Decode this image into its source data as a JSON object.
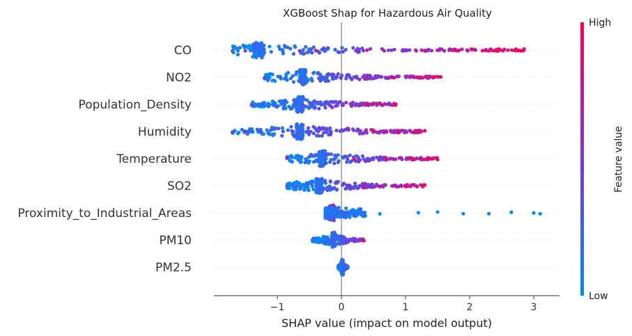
{
  "chart_data": {
    "type": "scatter",
    "title": "XGBoost Shap for Hazardous Air Quality",
    "xlabel": "SHAP value (impact on model output)",
    "xlim": [
      -1.95,
      3.35
    ],
    "x_ticks": [
      -1,
      0,
      1,
      2,
      3
    ],
    "x_tick_labels": [
      "−1",
      "0",
      "1",
      "2",
      "3"
    ],
    "colorbar": {
      "label": "Feature value",
      "high_label": "High",
      "low_label": "Low",
      "high_color": "#ff0052",
      "low_color": "#008bfb"
    },
    "features": [
      {
        "name": "CO",
        "min": -1.7,
        "max": 2.85,
        "dense": [
          -1.4,
          -1.2
        ],
        "low_side": "left",
        "mix": 0.9,
        "sparse": [
          [
            -1.7,
            0.3
          ],
          [
            -1.5,
            0.4
          ],
          [
            -0.65,
            0.6
          ],
          [
            -0.4,
            0.7
          ],
          [
            0.4,
            0.8
          ],
          [
            1.3,
            0.9
          ],
          [
            1.8,
            0.95
          ],
          [
            2.2,
            1
          ],
          [
            2.45,
            1
          ],
          [
            2.85,
            1
          ]
        ]
      },
      {
        "name": "NO2",
        "min": -1.2,
        "max": 1.55,
        "dense": [
          -0.65,
          -0.55
        ],
        "low_side": "left",
        "mix": 0.8,
        "sparse": [
          [
            -1.2,
            0.4
          ],
          [
            -0.95,
            0.3
          ],
          [
            0.4,
            0.8
          ],
          [
            0.8,
            0.9
          ],
          [
            1.2,
            0.95
          ],
          [
            1.45,
            1
          ],
          [
            1.55,
            1
          ]
        ]
      },
      {
        "name": "Population_Density",
        "min": -1.4,
        "max": 0.85,
        "dense": [
          -0.7,
          -0.6
        ],
        "low_side": "left",
        "mix": 0.7,
        "sparse": [
          [
            -1.4,
            0.5
          ],
          [
            -1.25,
            0.4
          ],
          [
            0.4,
            0.9
          ],
          [
            0.6,
            0.95
          ],
          [
            0.85,
            1
          ]
        ]
      },
      {
        "name": "Humidity",
        "min": -1.7,
        "max": 1.3,
        "dense": [
          -0.7,
          -0.6
        ],
        "low_side": "left",
        "mix": 0.75,
        "sparse": [
          [
            -1.7,
            0.5
          ],
          [
            -1.5,
            0.6
          ],
          [
            -1.25,
            0.4
          ],
          [
            0.5,
            0.9
          ],
          [
            0.9,
            0.95
          ],
          [
            1.3,
            1
          ]
        ]
      },
      {
        "name": "Temperature",
        "min": -0.85,
        "max": 1.5,
        "dense": [
          -0.35,
          -0.25
        ],
        "low_side": "left",
        "mix": 0.8,
        "sparse": [
          [
            -0.85,
            0.6
          ],
          [
            0.2,
            0.95
          ],
          [
            0.7,
            0.95
          ],
          [
            1.1,
            1
          ],
          [
            1.35,
            1
          ],
          [
            1.5,
            1
          ]
        ]
      },
      {
        "name": "SO2",
        "min": -0.85,
        "max": 1.3,
        "dense": [
          -0.4,
          -0.3
        ],
        "low_side": "left",
        "mix": 0.8,
        "sparse": [
          [
            -0.85,
            0.3
          ],
          [
            -0.7,
            0.4
          ],
          [
            0.35,
            0.8
          ],
          [
            0.6,
            0.95
          ],
          [
            1.0,
            1
          ],
          [
            1.3,
            1
          ]
        ]
      },
      {
        "name": "Proximity_to_Industrial_Areas",
        "min": -0.25,
        "max": 3.1,
        "dense": [
          -0.2,
          -0.1
        ],
        "low_side": "right",
        "mix": 0.15,
        "sparse": [
          [
            0.6,
            0
          ],
          [
            1.2,
            0
          ],
          [
            1.5,
            0
          ],
          [
            1.9,
            0
          ],
          [
            2.3,
            0
          ],
          [
            2.65,
            0
          ],
          [
            3.0,
            0
          ],
          [
            3.1,
            0
          ]
        ]
      },
      {
        "name": "PM10",
        "min": -0.45,
        "max": 0.35,
        "dense": [
          -0.15,
          -0.1
        ],
        "low_side": "left",
        "mix": 0.55,
        "sparse": [
          [
            -0.45,
            0.3
          ],
          [
            0.35,
            0.9
          ]
        ]
      },
      {
        "name": "PM2.5",
        "min": -0.05,
        "max": 0.1,
        "dense": [
          0.0,
          0.03
        ],
        "low_side": "left",
        "mix": 0.4,
        "sparse": [
          [
            0.1,
            0.1
          ]
        ]
      }
    ]
  }
}
